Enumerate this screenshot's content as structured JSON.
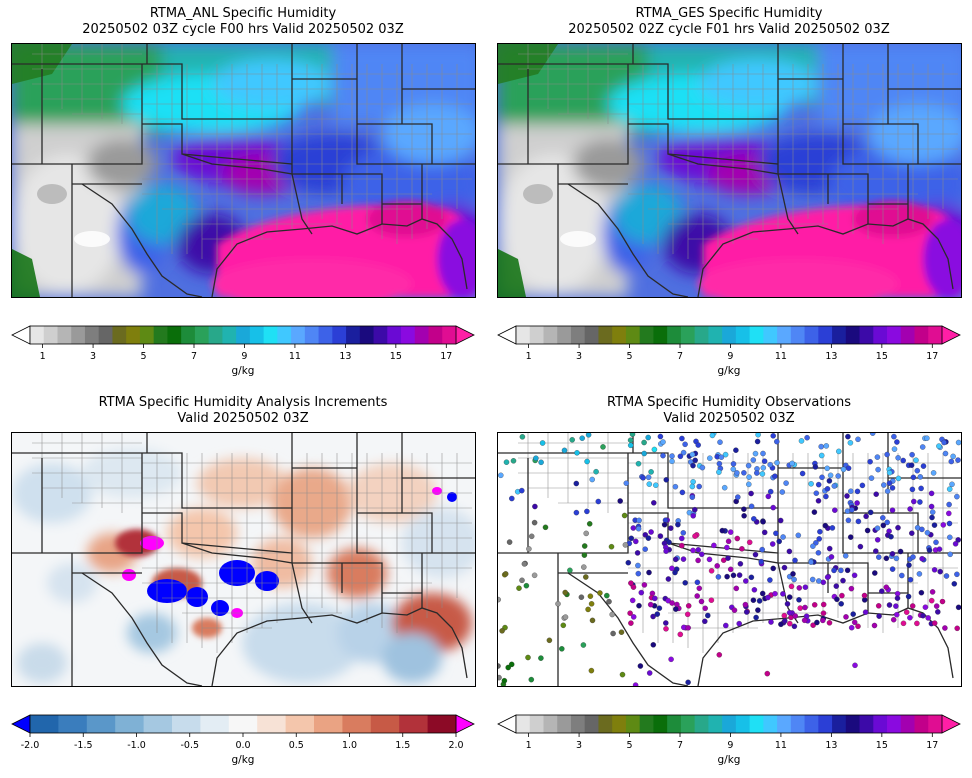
{
  "panels": [
    {
      "id": "anl",
      "title_line1": "RTMA_ANL Specific Humidity",
      "title_line2": "20250502 03Z cycle F00 hrs Valid 20250502 03Z",
      "colorbar": {
        "ticks": [
          "1",
          "3",
          "5",
          "7",
          "9",
          "11",
          "13",
          "15",
          "17"
        ],
        "label": "g/kg"
      }
    },
    {
      "id": "ges",
      "title_line1": "RTMA_GES Specific Humidity",
      "title_line2": "20250502 02Z cycle F01 hrs Valid 20250502 03Z",
      "colorbar": {
        "ticks": [
          "1",
          "3",
          "5",
          "7",
          "9",
          "11",
          "13",
          "15",
          "17"
        ],
        "label": "g/kg"
      }
    },
    {
      "id": "inc",
      "title_line1": "RTMA Specific Humidity Analysis Increments",
      "title_line2": "Valid 20250502 03Z",
      "colorbar": {
        "ticks": [
          "-2.0",
          "-1.5",
          "-1.0",
          "-0.5",
          "0.0",
          "0.5",
          "1.0",
          "1.5",
          "2.0"
        ],
        "label": "g/kg"
      }
    },
    {
      "id": "obs",
      "title_line1": "RTMA Specific Humidity Observations",
      "title_line2": "Valid 20250502 03Z",
      "colorbar": {
        "ticks": [
          "1",
          "3",
          "5",
          "7",
          "9",
          "11",
          "13",
          "15",
          "17"
        ],
        "label": "g/kg"
      }
    }
  ],
  "colors": {
    "humidity_scale": [
      "#ffffff",
      "#e6e6e6",
      "#cfcfcf",
      "#b5b5b5",
      "#9a9a9a",
      "#7e7e7e",
      "#666666",
      "#6b6b1f",
      "#7f7f0d",
      "#5e8a14",
      "#237a1e",
      "#0a6e0a",
      "#1d8c3a",
      "#2aa15a",
      "#28a88a",
      "#20b3b0",
      "#1aa8d9",
      "#17c0e8",
      "#1fe0f5",
      "#40c8ff",
      "#5aa8ff",
      "#4f86f5",
      "#3d62e8",
      "#2b3fd6",
      "#1a1f9e",
      "#1a0a7e",
      "#3c0aa8",
      "#6a0ad4",
      "#8a0ae0",
      "#a300b0",
      "#c2008a",
      "#e00d92",
      "#ff1fa6"
    ],
    "increment_scale": [
      "#0000ff",
      "#2166ac",
      "#3a7dbd",
      "#5a97c9",
      "#7fb1d5",
      "#a5c8e1",
      "#c7dcec",
      "#e3edf4",
      "#f7f7f7",
      "#f7e2d6",
      "#f4c6ac",
      "#eaa383",
      "#d97c5f",
      "#c75a46",
      "#b2323a",
      "#8c0a26",
      "#ff00ff"
    ]
  }
}
